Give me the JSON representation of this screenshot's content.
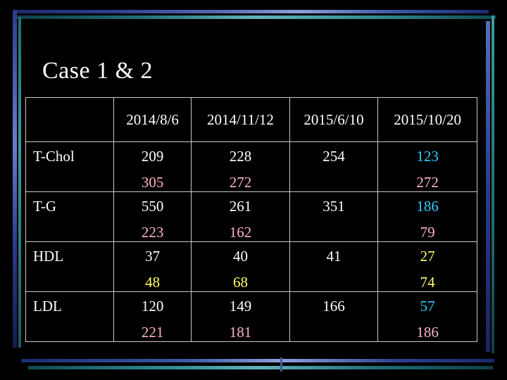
{
  "slide": {
    "title": "Case 1 & 2"
  },
  "colors": {
    "white": "#ffffff",
    "pink": "#ffb3c8",
    "yellow": "#ffff66",
    "cyan": "#33ccff"
  },
  "table": {
    "corner": "",
    "dates": [
      "2014/8/6",
      "2014/11/12",
      "2015/6/10",
      "2015/10/20"
    ],
    "rows": [
      {
        "label": "T-Chol",
        "cells": [
          {
            "primary": "209",
            "secondary": "305"
          },
          {
            "primary": "228",
            "secondary": "272"
          },
          {
            "primary": "254",
            "secondary": ""
          },
          {
            "primary": "123",
            "secondary": "272"
          }
        ]
      },
      {
        "label": "T-G",
        "cells": [
          {
            "primary": "550",
            "secondary": "223"
          },
          {
            "primary": "261",
            "secondary": "162"
          },
          {
            "primary": "351",
            "secondary": ""
          },
          {
            "primary": "186",
            "secondary": "79"
          }
        ]
      },
      {
        "label": "HDL",
        "cells": [
          {
            "primary": "37",
            "secondary": "48"
          },
          {
            "primary": "40",
            "secondary": "68"
          },
          {
            "primary": "41",
            "secondary": ""
          },
          {
            "primary": "27",
            "secondary": "74"
          }
        ]
      },
      {
        "label": "LDL",
        "cells": [
          {
            "primary": "120",
            "secondary": "221"
          },
          {
            "primary": "149",
            "secondary": "181"
          },
          {
            "primary": "166",
            "secondary": ""
          },
          {
            "primary": "57",
            "secondary": "186"
          }
        ]
      }
    ]
  }
}
